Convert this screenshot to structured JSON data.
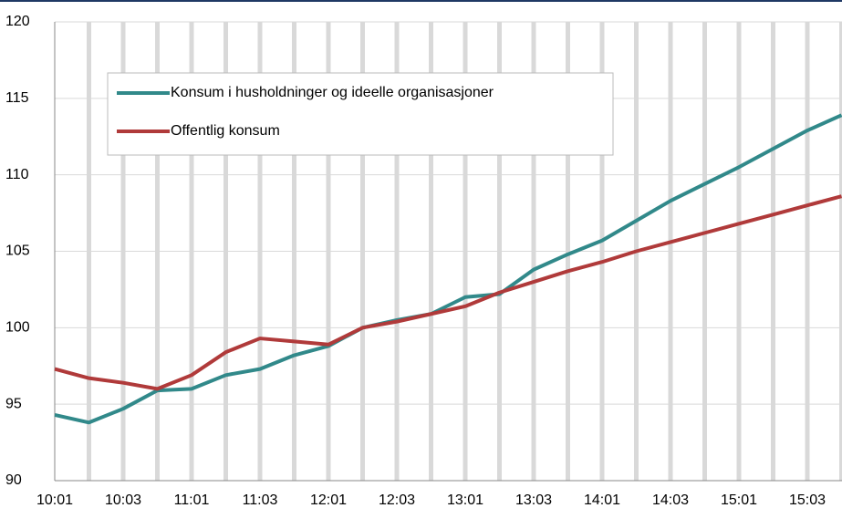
{
  "chart_data": {
    "type": "line",
    "categories": [
      "10:01",
      null,
      "10:03",
      null,
      "11:01",
      null,
      "11:03",
      null,
      "12:01",
      null,
      "12:03",
      null,
      "13:01",
      null,
      "13:03",
      null,
      "14:01",
      null,
      "14:03",
      null,
      "15:01",
      null,
      "15:03",
      null
    ],
    "series": [
      {
        "name": "Konsum i husholdninger og ideelle organisasjoner",
        "color": "#31898a",
        "values": [
          94.3,
          93.8,
          94.7,
          95.9,
          96.0,
          96.9,
          97.3,
          98.2,
          98.8,
          100.0,
          100.5,
          100.9,
          102.0,
          102.2,
          103.8,
          104.8,
          105.7,
          107.0,
          108.3,
          109.4,
          110.5,
          111.7,
          112.9,
          113.9
        ]
      },
      {
        "name": "Offentlig konsum",
        "color": "#b03a3a",
        "values": [
          97.3,
          96.7,
          96.4,
          96.0,
          96.9,
          98.4,
          99.3,
          99.1,
          98.9,
          100.0,
          100.4,
          100.9,
          101.4,
          102.3,
          103.0,
          103.7,
          104.3,
          105.0,
          105.6,
          106.2,
          106.8,
          107.4,
          108.0,
          108.6
        ]
      }
    ],
    "ylim": [
      90,
      120
    ],
    "yticks": [
      90,
      95,
      100,
      105,
      110,
      115,
      120
    ],
    "grid": true,
    "legend": "upper left"
  }
}
